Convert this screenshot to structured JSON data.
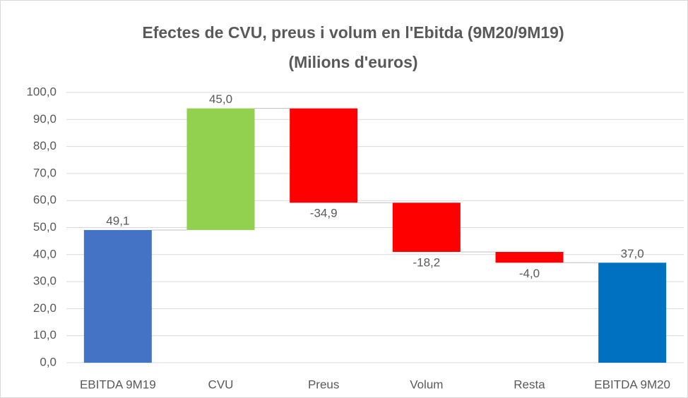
{
  "chart_data": {
    "type": "waterfall",
    "title": "Efectes de CVU, preus i volum en l'Ebitda (9M20/9M19)",
    "subtitle": "(Milions d'euros)",
    "categories": [
      "EBITDA 9M19",
      "CVU",
      "Preus",
      "Volum",
      "Resta",
      "EBITDA 9M20"
    ],
    "values": [
      49.1,
      45.0,
      -34.9,
      -18.2,
      -4.0,
      37.0
    ],
    "value_labels": [
      "49,1",
      "45,0",
      "-34,9",
      "-18,2",
      "-4,0",
      "37,0"
    ],
    "colors": [
      "#4472c4",
      "#92d050",
      "#ff0000",
      "#ff0000",
      "#ff0000",
      "#0070c0"
    ],
    "ylim": [
      0,
      100
    ],
    "yticks": [
      {
        "value": 0,
        "label": "0,0"
      },
      {
        "value": 10,
        "label": "10,0"
      },
      {
        "value": 20,
        "label": "20,0"
      },
      {
        "value": 30,
        "label": "30,0"
      },
      {
        "value": 40,
        "label": "40,0"
      },
      {
        "value": 50,
        "label": "50,0"
      },
      {
        "value": 60,
        "label": "60,0"
      },
      {
        "value": 70,
        "label": "70,0"
      },
      {
        "value": 80,
        "label": "80,0"
      },
      {
        "value": 90,
        "label": "90,0"
      },
      {
        "value": 100,
        "label": "100,0"
      }
    ],
    "grid": true
  }
}
